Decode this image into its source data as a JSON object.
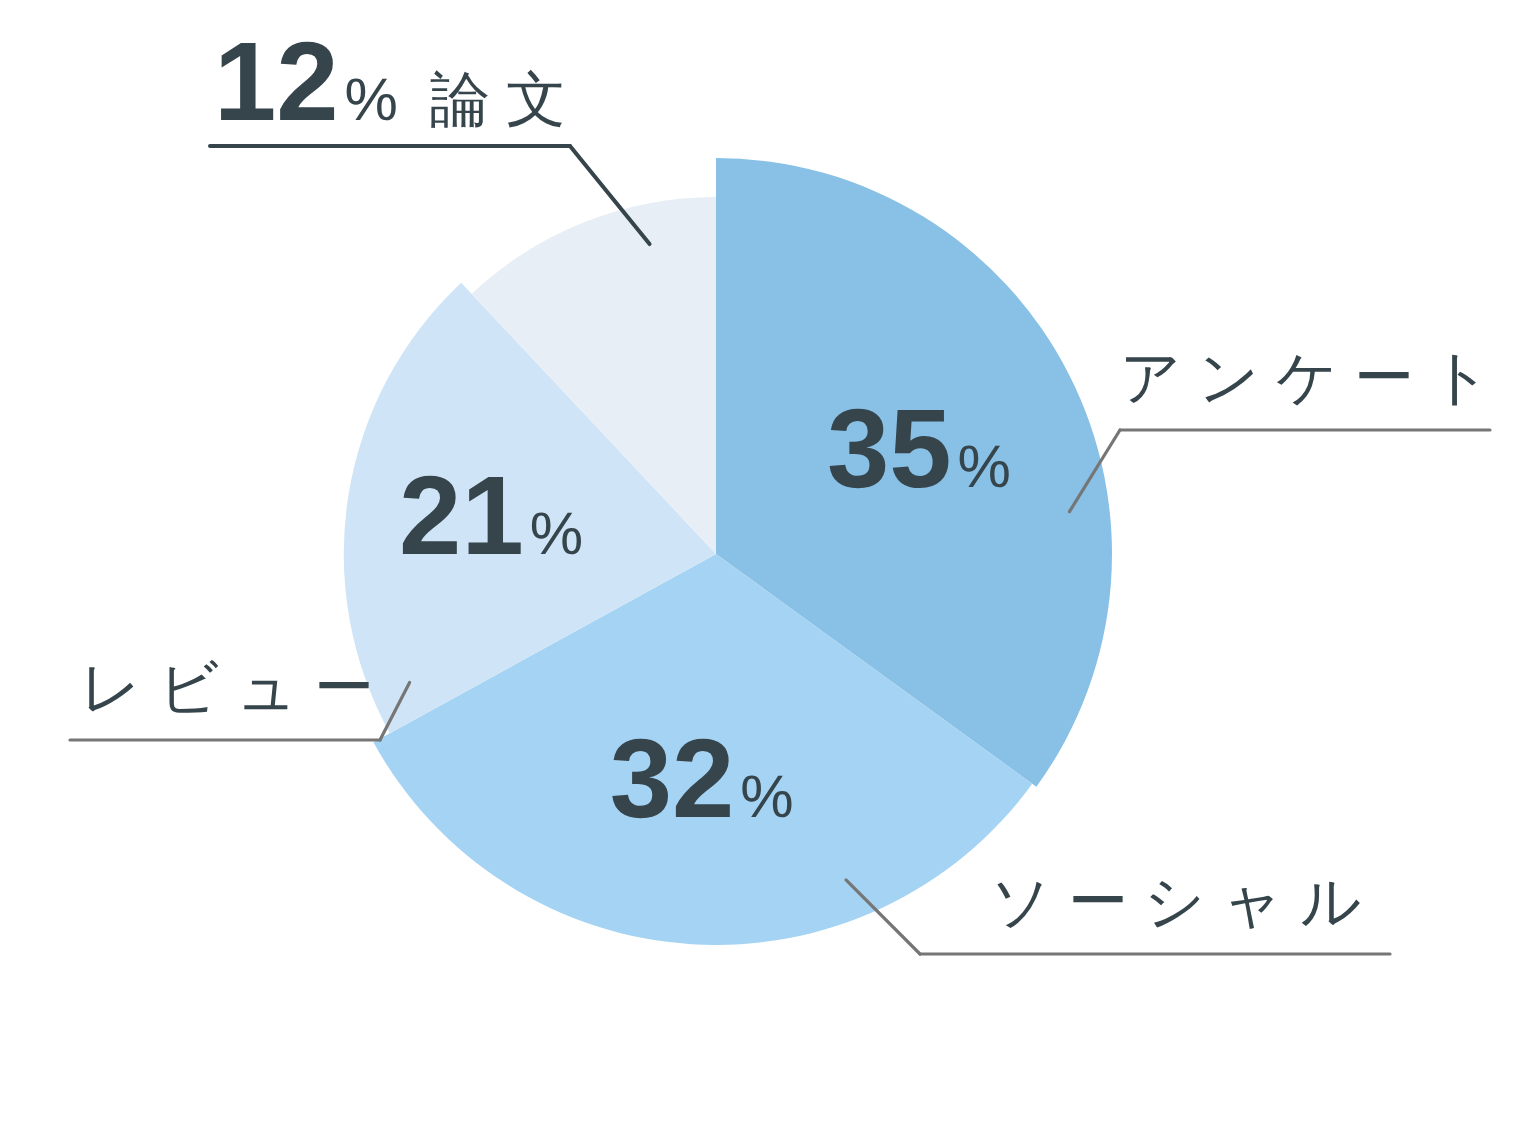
{
  "chart_data": {
    "type": "pie",
    "categories": [
      "アンケート",
      "ソーシャル",
      "レビュー",
      "論文"
    ],
    "values": [
      35,
      32,
      21,
      12
    ],
    "value_labels": [
      "35%",
      "32%",
      "21%",
      "12%"
    ],
    "colors": [
      "#88c0e6",
      "#a5d3f3",
      "#cfe5f7",
      "#e7eef6"
    ]
  }
}
